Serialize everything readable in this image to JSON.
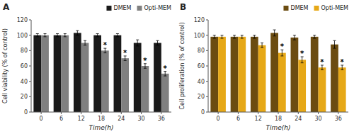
{
  "chart_data": [
    {
      "type": "bar",
      "title": "A",
      "xlabel": "Time(h)",
      "ylabel": "Cell viability (% of control)",
      "categories": [
        "0",
        "6",
        "12",
        "18",
        "24",
        "30",
        "36"
      ],
      "series": [
        {
          "name": "DMEM",
          "color": "#1a1a1a",
          "values": [
            100,
            100,
            103,
            100,
            100,
            90,
            90
          ],
          "errors": [
            2,
            2,
            3,
            2,
            2,
            4,
            3
          ]
        },
        {
          "name": "Opti-MEM",
          "color": "#808080",
          "values": [
            100,
            100,
            90,
            80,
            70,
            60,
            50
          ],
          "errors": [
            2,
            2,
            3,
            3,
            3,
            3,
            3
          ]
        }
      ],
      "annotations": [
        {
          "text": "*",
          "category": "18",
          "series": "Opti-MEM"
        },
        {
          "text": "*",
          "category": "24",
          "series": "Opti-MEM"
        },
        {
          "text": "*",
          "category": "30",
          "series": "Opti-MEM"
        },
        {
          "text": "*",
          "category": "36",
          "series": "Opti-MEM"
        }
      ],
      "ylim": [
        0,
        120
      ],
      "yticks": [
        0,
        20,
        40,
        60,
        80,
        100,
        120
      ],
      "grid": false,
      "legend": "upper right"
    },
    {
      "type": "bar",
      "title": "B",
      "xlabel": "Time(h)",
      "ylabel": "Cell proliferation (% of control)",
      "categories": [
        "0",
        "6",
        "12",
        "18",
        "24",
        "30",
        "36"
      ],
      "series": [
        {
          "name": "DMEM",
          "color": "#6b4c11",
          "values": [
            98,
            98,
            98,
            103,
            97,
            98,
            88
          ],
          "errors": [
            2,
            2,
            2,
            4,
            3,
            2,
            5
          ]
        },
        {
          "name": "Opti-MEM",
          "color": "#e6a817",
          "values": [
            98,
            98,
            87,
            77,
            68,
            58,
            58
          ],
          "errors": [
            2,
            2,
            3,
            4,
            4,
            3,
            3
          ]
        }
      ],
      "annotations": [
        {
          "text": "*",
          "category": "18",
          "series": "Opti-MEM"
        },
        {
          "text": "*",
          "category": "24",
          "series": "Opti-MEM"
        },
        {
          "text": "*",
          "category": "30",
          "series": "Opti-MEM"
        },
        {
          "text": "*",
          "category": "36",
          "series": "Opti-MEM"
        }
      ],
      "ylim": [
        0,
        120
      ],
      "yticks": [
        0,
        20,
        40,
        60,
        80,
        100,
        120
      ],
      "grid": false,
      "legend": "upper right"
    }
  ]
}
